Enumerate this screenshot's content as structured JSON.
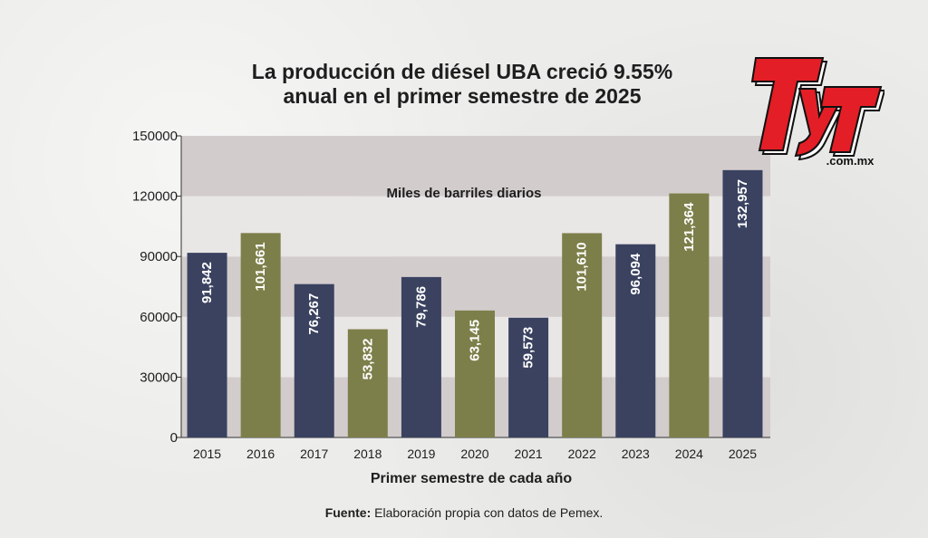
{
  "chart_data": {
    "type": "bar",
    "title_lines": [
      "La producción de diésel UBA creció 9.55%",
      "anual en el primer semestre de 2025"
    ],
    "unit_label": "Miles de barriles diarios",
    "xlabel": "Primer semestre de cada año",
    "ylabel": "",
    "categories": [
      "2015",
      "2016",
      "2017",
      "2018",
      "2019",
      "2020",
      "2021",
      "2022",
      "2023",
      "2024",
      "2025"
    ],
    "values": [
      91842,
      101661,
      76267,
      53832,
      79786,
      63145,
      59573,
      101610,
      96094,
      121364,
      132957
    ],
    "value_labels": [
      "91,842",
      "101,661",
      "76,267",
      "53,832",
      "79,786",
      "63,145",
      "59,573",
      "101,610",
      "96,094",
      "121,364",
      "132,957"
    ],
    "ylim": [
      0,
      150000
    ],
    "yticks": [
      0,
      30000,
      60000,
      90000,
      120000,
      150000
    ],
    "ytick_labels": [
      "0",
      "30000",
      "60000",
      "90000",
      "120000",
      "150000"
    ],
    "grid": false,
    "legend": "none",
    "colors": {
      "navy": "#3a4260",
      "olive": "#7d7f4a",
      "band_light": "#e9e6e6",
      "band_dark": "#d3cccc",
      "value_text": "#ffffff"
    },
    "bar_color_order": [
      "navy",
      "olive",
      "navy",
      "olive",
      "navy",
      "olive",
      "navy",
      "olive",
      "navy",
      "olive",
      "navy"
    ]
  },
  "source": {
    "label": "Fuente:",
    "text": " Elaboración propia con datos de Pemex."
  },
  "logo": {
    "letters": "TyT",
    "domain": ".com.mx",
    "red": "#e41e26",
    "black": "#111111"
  }
}
